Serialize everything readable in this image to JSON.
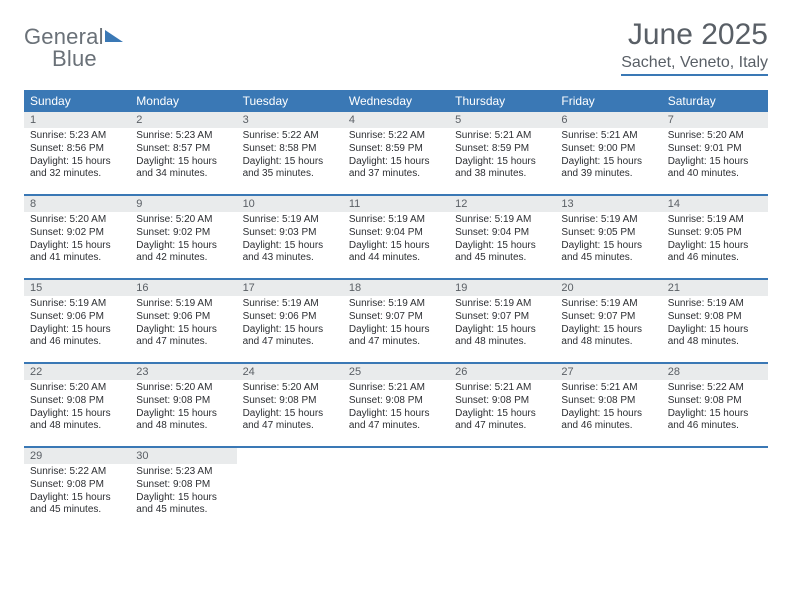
{
  "brand": {
    "name_a": "General",
    "name_b": "Blue"
  },
  "title": "June 2025",
  "subtitle": "Sachet, Veneto, Italy",
  "colors": {
    "accent": "#3a78b5",
    "header_text": "#595f66",
    "daybar": "#e9ebec"
  },
  "day_names": [
    "Sunday",
    "Monday",
    "Tuesday",
    "Wednesday",
    "Thursday",
    "Friday",
    "Saturday"
  ],
  "weeks": [
    [
      {
        "n": "1",
        "sr": "Sunrise: 5:23 AM",
        "ss": "Sunset: 8:56 PM",
        "d1": "Daylight: 15 hours",
        "d2": "and 32 minutes."
      },
      {
        "n": "2",
        "sr": "Sunrise: 5:23 AM",
        "ss": "Sunset: 8:57 PM",
        "d1": "Daylight: 15 hours",
        "d2": "and 34 minutes."
      },
      {
        "n": "3",
        "sr": "Sunrise: 5:22 AM",
        "ss": "Sunset: 8:58 PM",
        "d1": "Daylight: 15 hours",
        "d2": "and 35 minutes."
      },
      {
        "n": "4",
        "sr": "Sunrise: 5:22 AM",
        "ss": "Sunset: 8:59 PM",
        "d1": "Daylight: 15 hours",
        "d2": "and 37 minutes."
      },
      {
        "n": "5",
        "sr": "Sunrise: 5:21 AM",
        "ss": "Sunset: 8:59 PM",
        "d1": "Daylight: 15 hours",
        "d2": "and 38 minutes."
      },
      {
        "n": "6",
        "sr": "Sunrise: 5:21 AM",
        "ss": "Sunset: 9:00 PM",
        "d1": "Daylight: 15 hours",
        "d2": "and 39 minutes."
      },
      {
        "n": "7",
        "sr": "Sunrise: 5:20 AM",
        "ss": "Sunset: 9:01 PM",
        "d1": "Daylight: 15 hours",
        "d2": "and 40 minutes."
      }
    ],
    [
      {
        "n": "8",
        "sr": "Sunrise: 5:20 AM",
        "ss": "Sunset: 9:02 PM",
        "d1": "Daylight: 15 hours",
        "d2": "and 41 minutes."
      },
      {
        "n": "9",
        "sr": "Sunrise: 5:20 AM",
        "ss": "Sunset: 9:02 PM",
        "d1": "Daylight: 15 hours",
        "d2": "and 42 minutes."
      },
      {
        "n": "10",
        "sr": "Sunrise: 5:19 AM",
        "ss": "Sunset: 9:03 PM",
        "d1": "Daylight: 15 hours",
        "d2": "and 43 minutes."
      },
      {
        "n": "11",
        "sr": "Sunrise: 5:19 AM",
        "ss": "Sunset: 9:04 PM",
        "d1": "Daylight: 15 hours",
        "d2": "and 44 minutes."
      },
      {
        "n": "12",
        "sr": "Sunrise: 5:19 AM",
        "ss": "Sunset: 9:04 PM",
        "d1": "Daylight: 15 hours",
        "d2": "and 45 minutes."
      },
      {
        "n": "13",
        "sr": "Sunrise: 5:19 AM",
        "ss": "Sunset: 9:05 PM",
        "d1": "Daylight: 15 hours",
        "d2": "and 45 minutes."
      },
      {
        "n": "14",
        "sr": "Sunrise: 5:19 AM",
        "ss": "Sunset: 9:05 PM",
        "d1": "Daylight: 15 hours",
        "d2": "and 46 minutes."
      }
    ],
    [
      {
        "n": "15",
        "sr": "Sunrise: 5:19 AM",
        "ss": "Sunset: 9:06 PM",
        "d1": "Daylight: 15 hours",
        "d2": "and 46 minutes."
      },
      {
        "n": "16",
        "sr": "Sunrise: 5:19 AM",
        "ss": "Sunset: 9:06 PM",
        "d1": "Daylight: 15 hours",
        "d2": "and 47 minutes."
      },
      {
        "n": "17",
        "sr": "Sunrise: 5:19 AM",
        "ss": "Sunset: 9:06 PM",
        "d1": "Daylight: 15 hours",
        "d2": "and 47 minutes."
      },
      {
        "n": "18",
        "sr": "Sunrise: 5:19 AM",
        "ss": "Sunset: 9:07 PM",
        "d1": "Daylight: 15 hours",
        "d2": "and 47 minutes."
      },
      {
        "n": "19",
        "sr": "Sunrise: 5:19 AM",
        "ss": "Sunset: 9:07 PM",
        "d1": "Daylight: 15 hours",
        "d2": "and 48 minutes."
      },
      {
        "n": "20",
        "sr": "Sunrise: 5:19 AM",
        "ss": "Sunset: 9:07 PM",
        "d1": "Daylight: 15 hours",
        "d2": "and 48 minutes."
      },
      {
        "n": "21",
        "sr": "Sunrise: 5:19 AM",
        "ss": "Sunset: 9:08 PM",
        "d1": "Daylight: 15 hours",
        "d2": "and 48 minutes."
      }
    ],
    [
      {
        "n": "22",
        "sr": "Sunrise: 5:20 AM",
        "ss": "Sunset: 9:08 PM",
        "d1": "Daylight: 15 hours",
        "d2": "and 48 minutes."
      },
      {
        "n": "23",
        "sr": "Sunrise: 5:20 AM",
        "ss": "Sunset: 9:08 PM",
        "d1": "Daylight: 15 hours",
        "d2": "and 48 minutes."
      },
      {
        "n": "24",
        "sr": "Sunrise: 5:20 AM",
        "ss": "Sunset: 9:08 PM",
        "d1": "Daylight: 15 hours",
        "d2": "and 47 minutes."
      },
      {
        "n": "25",
        "sr": "Sunrise: 5:21 AM",
        "ss": "Sunset: 9:08 PM",
        "d1": "Daylight: 15 hours",
        "d2": "and 47 minutes."
      },
      {
        "n": "26",
        "sr": "Sunrise: 5:21 AM",
        "ss": "Sunset: 9:08 PM",
        "d1": "Daylight: 15 hours",
        "d2": "and 47 minutes."
      },
      {
        "n": "27",
        "sr": "Sunrise: 5:21 AM",
        "ss": "Sunset: 9:08 PM",
        "d1": "Daylight: 15 hours",
        "d2": "and 46 minutes."
      },
      {
        "n": "28",
        "sr": "Sunrise: 5:22 AM",
        "ss": "Sunset: 9:08 PM",
        "d1": "Daylight: 15 hours",
        "d2": "and 46 minutes."
      }
    ],
    [
      {
        "n": "29",
        "sr": "Sunrise: 5:22 AM",
        "ss": "Sunset: 9:08 PM",
        "d1": "Daylight: 15 hours",
        "d2": "and 45 minutes."
      },
      {
        "n": "30",
        "sr": "Sunrise: 5:23 AM",
        "ss": "Sunset: 9:08 PM",
        "d1": "Daylight: 15 hours",
        "d2": "and 45 minutes."
      },
      null,
      null,
      null,
      null,
      null
    ]
  ]
}
